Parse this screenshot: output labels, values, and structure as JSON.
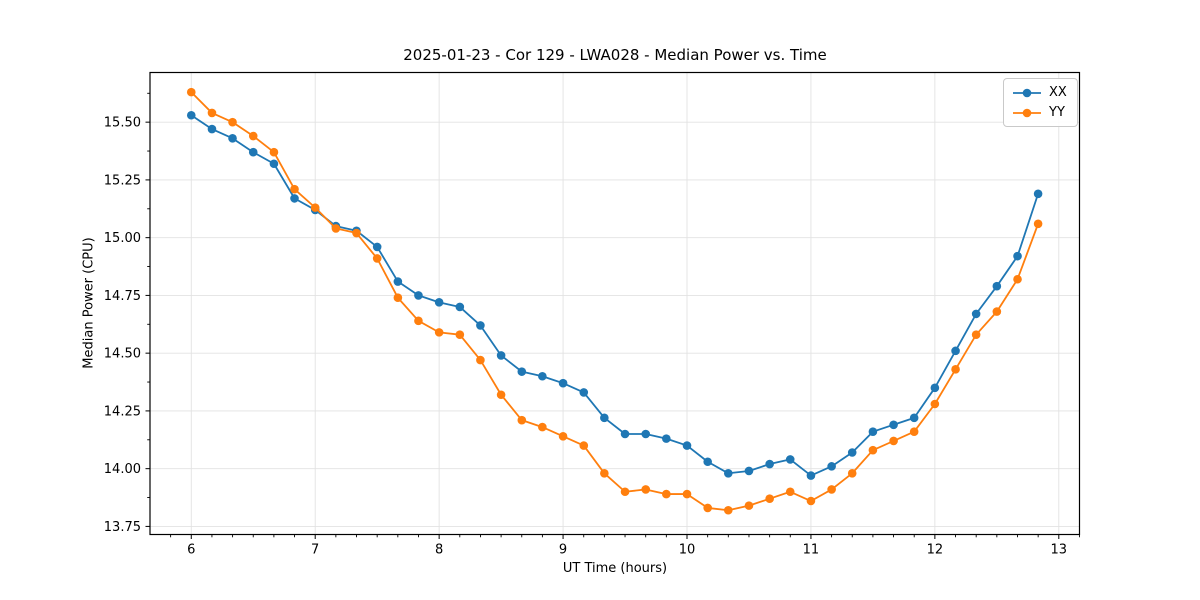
{
  "figure": {
    "background": "#ffffff",
    "text_color": "#000000",
    "grid_color": "#e2e2e2"
  },
  "chart_data": {
    "type": "line",
    "title": "2025-01-23 - Cor 129 - LWA028 - Median Power vs. Time",
    "xlabel": "UT Time (hours)",
    "ylabel": "Median Power (CPU)",
    "xlim": [
      5.667,
      13.167
    ],
    "ylim": [
      13.715,
      15.715
    ],
    "grid": true,
    "legend_position": "upper right",
    "x_major_ticks": [
      6,
      7,
      8,
      9,
      10,
      11,
      12,
      13
    ],
    "x_tick_labels": [
      "6",
      "7",
      "8",
      "9",
      "10",
      "11",
      "12",
      "13"
    ],
    "x_minor_step": 0.16667,
    "y_major_ticks": [
      13.75,
      14.0,
      14.25,
      14.5,
      14.75,
      15.0,
      15.25,
      15.5
    ],
    "y_tick_labels": [
      "13.75",
      "14.00",
      "14.25",
      "14.50",
      "14.75",
      "15.00",
      "15.25",
      "15.50"
    ],
    "y_minor_step": 0.125,
    "x": [
      6.0,
      6.167,
      6.333,
      6.5,
      6.667,
      6.833,
      7.0,
      7.167,
      7.333,
      7.5,
      7.667,
      7.833,
      8.0,
      8.167,
      8.333,
      8.5,
      8.667,
      8.833,
      9.0,
      9.167,
      9.333,
      9.5,
      9.667,
      9.833,
      10.0,
      10.167,
      10.333,
      10.5,
      10.667,
      10.833,
      11.0,
      11.167,
      11.333,
      11.5,
      11.667,
      11.833,
      12.0,
      12.167,
      12.333,
      12.5,
      12.667,
      12.833
    ],
    "series": [
      {
        "name": "XX",
        "color": "#1f77b4",
        "values": [
          15.53,
          15.47,
          15.43,
          15.37,
          15.32,
          15.17,
          15.12,
          15.05,
          15.03,
          14.96,
          14.81,
          14.75,
          14.72,
          14.7,
          14.62,
          14.49,
          14.42,
          14.4,
          14.37,
          14.33,
          14.22,
          14.15,
          14.15,
          14.13,
          14.1,
          14.03,
          13.98,
          13.99,
          14.02,
          14.04,
          13.97,
          14.01,
          14.07,
          14.16,
          14.19,
          14.22,
          14.35,
          14.51,
          14.67,
          14.79,
          14.92,
          15.19
        ]
      },
      {
        "name": "YY",
        "color": "#ff7f0e",
        "values": [
          15.63,
          15.54,
          15.5,
          15.44,
          15.37,
          15.21,
          15.13,
          15.04,
          15.02,
          14.91,
          14.74,
          14.64,
          14.59,
          14.58,
          14.47,
          14.32,
          14.21,
          14.18,
          14.14,
          14.1,
          13.98,
          13.9,
          13.91,
          13.89,
          13.89,
          13.83,
          13.82,
          13.84,
          13.87,
          13.9,
          13.86,
          13.91,
          13.98,
          14.08,
          14.12,
          14.16,
          14.28,
          14.43,
          14.58,
          14.68,
          14.82,
          15.06
        ]
      }
    ]
  }
}
